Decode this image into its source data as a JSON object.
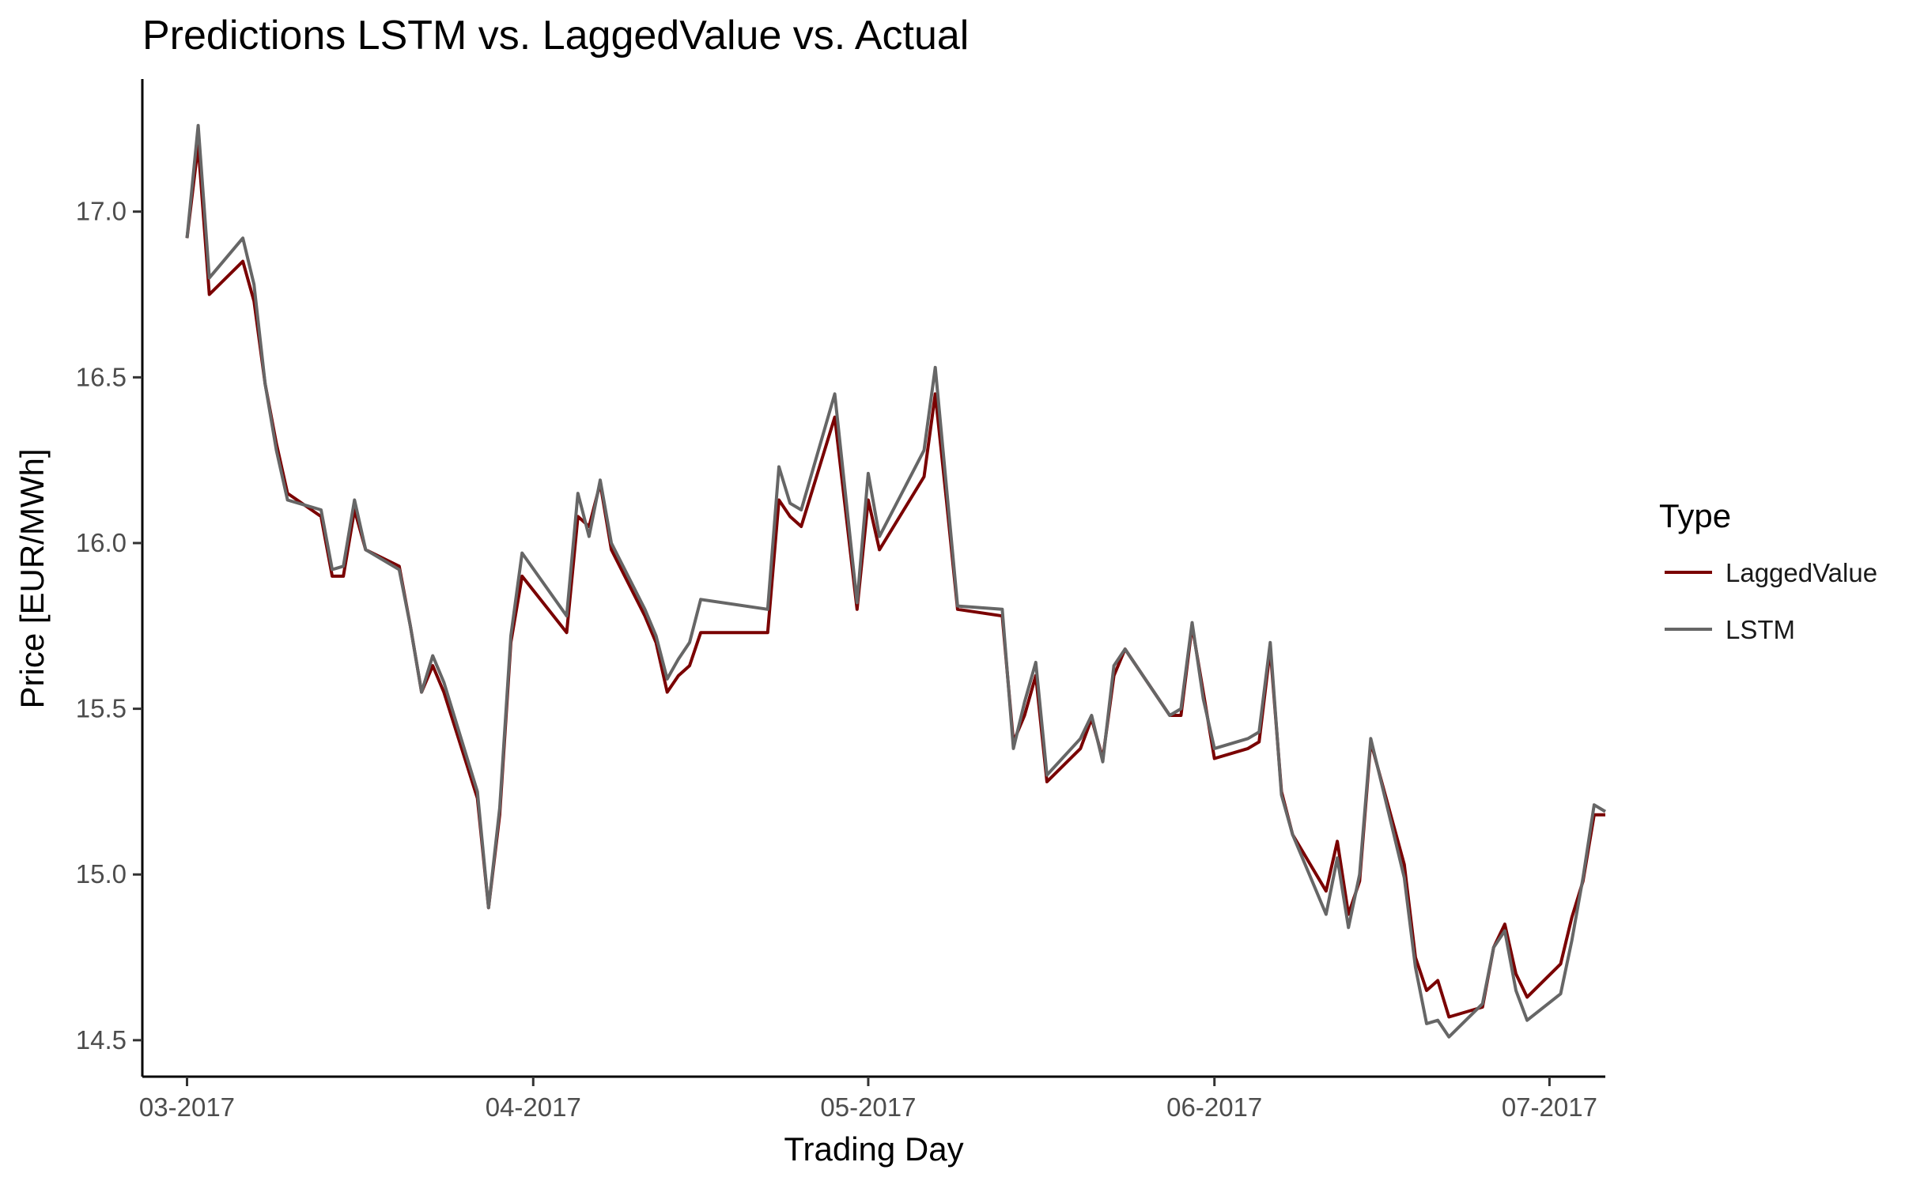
{
  "chart_data": {
    "type": "line",
    "title": "Predictions LSTM vs. LaggedValue vs. Actual",
    "xlabel": "Trading Day",
    "ylabel": "Price [EUR/MWh]",
    "x_ticks": [
      {
        "date": "2017-03-01",
        "label": "03-2017"
      },
      {
        "date": "2017-04-01",
        "label": "04-2017"
      },
      {
        "date": "2017-05-01",
        "label": "05-2017"
      },
      {
        "date": "2017-06-01",
        "label": "06-2017"
      },
      {
        "date": "2017-07-01",
        "label": "07-2017"
      }
    ],
    "y_ticks": [
      {
        "value": 14.5,
        "label": "14.5"
      },
      {
        "value": 15.0,
        "label": "15.0"
      },
      {
        "value": 15.5,
        "label": "15.5"
      },
      {
        "value": 16.0,
        "label": "16.0"
      },
      {
        "value": 16.5,
        "label": "16.5"
      },
      {
        "value": 17.0,
        "label": "17.0"
      }
    ],
    "xlim": [
      "2017-02-25",
      "2017-07-06"
    ],
    "ylim": [
      14.39,
      17.4
    ],
    "grid": false,
    "legend": {
      "title": "Type",
      "position": "right"
    },
    "series": [
      {
        "name": "LaggedValue",
        "color": "#7a0000",
        "points": [
          [
            "2017-03-01",
            16.92
          ],
          [
            "2017-03-02",
            17.2
          ],
          [
            "2017-03-03",
            16.75
          ],
          [
            "2017-03-06",
            16.85
          ],
          [
            "2017-03-07",
            16.73
          ],
          [
            "2017-03-08",
            16.48
          ],
          [
            "2017-03-09",
            16.3
          ],
          [
            "2017-03-10",
            16.15
          ],
          [
            "2017-03-13",
            16.08
          ],
          [
            "2017-03-14",
            15.9
          ],
          [
            "2017-03-15",
            15.9
          ],
          [
            "2017-03-16",
            16.1
          ],
          [
            "2017-03-17",
            15.98
          ],
          [
            "2017-03-20",
            15.93
          ],
          [
            "2017-03-21",
            15.75
          ],
          [
            "2017-03-22",
            15.55
          ],
          [
            "2017-03-23",
            15.63
          ],
          [
            "2017-03-24",
            15.55
          ],
          [
            "2017-03-27",
            15.23
          ],
          [
            "2017-03-28",
            14.9
          ],
          [
            "2017-03-29",
            15.18
          ],
          [
            "2017-03-30",
            15.7
          ],
          [
            "2017-03-31",
            15.9
          ],
          [
            "2017-04-04",
            15.73
          ],
          [
            "2017-04-05",
            16.08
          ],
          [
            "2017-04-06",
            16.05
          ],
          [
            "2017-04-07",
            16.18
          ],
          [
            "2017-04-08",
            15.98
          ],
          [
            "2017-04-11",
            15.78
          ],
          [
            "2017-04-12",
            15.7
          ],
          [
            "2017-04-13",
            15.55
          ],
          [
            "2017-04-14",
            15.6
          ],
          [
            "2017-04-15",
            15.63
          ],
          [
            "2017-04-16",
            15.73
          ],
          [
            "2017-04-22",
            15.73
          ],
          [
            "2017-04-23",
            16.13
          ],
          [
            "2017-04-24",
            16.08
          ],
          [
            "2017-04-25",
            16.05
          ],
          [
            "2017-04-28",
            16.38
          ],
          [
            "2017-04-30",
            15.8
          ],
          [
            "2017-05-01",
            16.13
          ],
          [
            "2017-05-02",
            15.98
          ],
          [
            "2017-05-06",
            16.2
          ],
          [
            "2017-05-07",
            16.45
          ],
          [
            "2017-05-08",
            16.13
          ],
          [
            "2017-05-09",
            15.8
          ],
          [
            "2017-05-13",
            15.78
          ],
          [
            "2017-05-14",
            15.4
          ],
          [
            "2017-05-15",
            15.48
          ],
          [
            "2017-05-16",
            15.6
          ],
          [
            "2017-05-17",
            15.28
          ],
          [
            "2017-05-20",
            15.38
          ],
          [
            "2017-05-21",
            15.47
          ],
          [
            "2017-05-22",
            15.35
          ],
          [
            "2017-05-23",
            15.6
          ],
          [
            "2017-05-24",
            15.68
          ],
          [
            "2017-05-28",
            15.48
          ],
          [
            "2017-05-29",
            15.48
          ],
          [
            "2017-05-30",
            15.75
          ],
          [
            "2017-05-31",
            15.55
          ],
          [
            "2017-06-01",
            15.35
          ],
          [
            "2017-06-04",
            15.38
          ],
          [
            "2017-06-05",
            15.4
          ],
          [
            "2017-06-06",
            15.68
          ],
          [
            "2017-06-07",
            15.25
          ],
          [
            "2017-06-08",
            15.12
          ],
          [
            "2017-06-11",
            14.95
          ],
          [
            "2017-06-12",
            15.1
          ],
          [
            "2017-06-13",
            14.88
          ],
          [
            "2017-06-14",
            14.98
          ],
          [
            "2017-06-15",
            15.4
          ],
          [
            "2017-06-18",
            15.03
          ],
          [
            "2017-06-19",
            14.75
          ],
          [
            "2017-06-20",
            14.65
          ],
          [
            "2017-06-21",
            14.68
          ],
          [
            "2017-06-22",
            14.57
          ],
          [
            "2017-06-25",
            14.6
          ],
          [
            "2017-06-26",
            14.78
          ],
          [
            "2017-06-27",
            14.85
          ],
          [
            "2017-06-28",
            14.7
          ],
          [
            "2017-06-29",
            14.63
          ],
          [
            "2017-07-02",
            14.73
          ],
          [
            "2017-07-03",
            14.87
          ],
          [
            "2017-07-04",
            14.98
          ],
          [
            "2017-07-05",
            15.18
          ],
          [
            "2017-07-06",
            15.18
          ]
        ]
      },
      {
        "name": "LSTM",
        "color": "#666666",
        "points": [
          [
            "2017-03-01",
            16.92
          ],
          [
            "2017-03-02",
            17.26
          ],
          [
            "2017-03-03",
            16.8
          ],
          [
            "2017-03-06",
            16.92
          ],
          [
            "2017-03-07",
            16.78
          ],
          [
            "2017-03-08",
            16.48
          ],
          [
            "2017-03-09",
            16.28
          ],
          [
            "2017-03-10",
            16.13
          ],
          [
            "2017-03-13",
            16.1
          ],
          [
            "2017-03-14",
            15.92
          ],
          [
            "2017-03-15",
            15.93
          ],
          [
            "2017-03-16",
            16.13
          ],
          [
            "2017-03-17",
            15.98
          ],
          [
            "2017-03-20",
            15.92
          ],
          [
            "2017-03-21",
            15.75
          ],
          [
            "2017-03-22",
            15.55
          ],
          [
            "2017-03-23",
            15.66
          ],
          [
            "2017-03-24",
            15.58
          ],
          [
            "2017-03-27",
            15.25
          ],
          [
            "2017-03-28",
            14.9
          ],
          [
            "2017-03-29",
            15.2
          ],
          [
            "2017-03-30",
            15.72
          ],
          [
            "2017-03-31",
            15.97
          ],
          [
            "2017-04-04",
            15.78
          ],
          [
            "2017-04-05",
            16.15
          ],
          [
            "2017-04-06",
            16.02
          ],
          [
            "2017-04-07",
            16.19
          ],
          [
            "2017-04-08",
            16.0
          ],
          [
            "2017-04-11",
            15.8
          ],
          [
            "2017-04-12",
            15.72
          ],
          [
            "2017-04-13",
            15.59
          ],
          [
            "2017-04-14",
            15.65
          ],
          [
            "2017-04-15",
            15.7
          ],
          [
            "2017-04-16",
            15.83
          ],
          [
            "2017-04-22",
            15.8
          ],
          [
            "2017-04-23",
            16.23
          ],
          [
            "2017-04-24",
            16.12
          ],
          [
            "2017-04-25",
            16.1
          ],
          [
            "2017-04-28",
            16.45
          ],
          [
            "2017-04-30",
            15.82
          ],
          [
            "2017-05-01",
            16.21
          ],
          [
            "2017-05-02",
            16.02
          ],
          [
            "2017-05-06",
            16.28
          ],
          [
            "2017-05-07",
            16.53
          ],
          [
            "2017-05-08",
            16.17
          ],
          [
            "2017-05-09",
            15.81
          ],
          [
            "2017-05-13",
            15.8
          ],
          [
            "2017-05-14",
            15.38
          ],
          [
            "2017-05-15",
            15.52
          ],
          [
            "2017-05-16",
            15.64
          ],
          [
            "2017-05-17",
            15.3
          ],
          [
            "2017-05-20",
            15.41
          ],
          [
            "2017-05-21",
            15.48
          ],
          [
            "2017-05-22",
            15.34
          ],
          [
            "2017-05-23",
            15.63
          ],
          [
            "2017-05-24",
            15.68
          ],
          [
            "2017-05-28",
            15.48
          ],
          [
            "2017-05-29",
            15.5
          ],
          [
            "2017-05-30",
            15.76
          ],
          [
            "2017-05-31",
            15.53
          ],
          [
            "2017-06-01",
            15.38
          ],
          [
            "2017-06-04",
            15.41
          ],
          [
            "2017-06-05",
            15.43
          ],
          [
            "2017-06-06",
            15.7
          ],
          [
            "2017-06-07",
            15.24
          ],
          [
            "2017-06-08",
            15.12
          ],
          [
            "2017-06-11",
            14.88
          ],
          [
            "2017-06-12",
            15.05
          ],
          [
            "2017-06-13",
            14.84
          ],
          [
            "2017-06-14",
            15.0
          ],
          [
            "2017-06-15",
            15.41
          ],
          [
            "2017-06-18",
            14.99
          ],
          [
            "2017-06-19",
            14.72
          ],
          [
            "2017-06-20",
            14.55
          ],
          [
            "2017-06-21",
            14.56
          ],
          [
            "2017-06-22",
            14.51
          ],
          [
            "2017-06-25",
            14.61
          ],
          [
            "2017-06-26",
            14.78
          ],
          [
            "2017-06-27",
            14.83
          ],
          [
            "2017-06-28",
            14.65
          ],
          [
            "2017-06-29",
            14.56
          ],
          [
            "2017-07-02",
            14.64
          ],
          [
            "2017-07-03",
            14.8
          ],
          [
            "2017-07-04",
            14.99
          ],
          [
            "2017-07-05",
            15.21
          ],
          [
            "2017-07-06",
            15.19
          ]
        ]
      }
    ]
  }
}
